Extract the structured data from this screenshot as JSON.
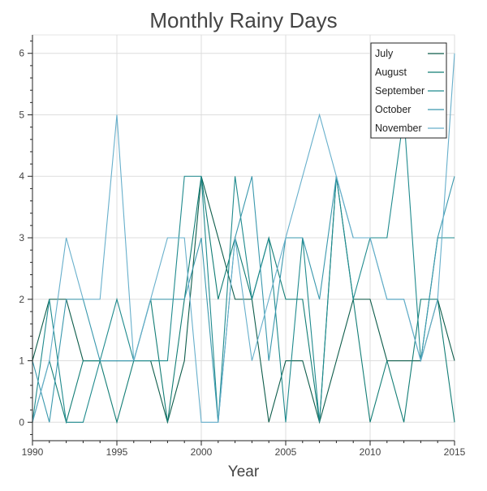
{
  "chart_data": {
    "type": "line",
    "title": "Monthly Rainy Days",
    "xlabel": "Year",
    "ylabel": "",
    "xlim": [
      1990,
      2015
    ],
    "ylim": [
      -0.3,
      6.3
    ],
    "xticks": [
      1990,
      1995,
      2000,
      2005,
      2010,
      2015
    ],
    "yticks": [
      0,
      1,
      2,
      3,
      4,
      5,
      6
    ],
    "grid": true,
    "legend_position": "top-right",
    "x": [
      1990,
      1991,
      1992,
      1993,
      1994,
      1995,
      1996,
      1997,
      1998,
      1999,
      2000,
      2001,
      2002,
      2003,
      2004,
      2005,
      2006,
      2007,
      2008,
      2009,
      2010,
      2011,
      2012,
      2013,
      2014,
      2015
    ],
    "series": [
      {
        "name": "July",
        "color": "#0d5c4a",
        "values": [
          1,
          2,
          2,
          1,
          1,
          1,
          1,
          1,
          0,
          1,
          4,
          3,
          2,
          2,
          0,
          1,
          1,
          0,
          1,
          2,
          2,
          1,
          1,
          1,
          2,
          1
        ]
      },
      {
        "name": "August",
        "color": "#127d75",
        "values": [
          0,
          1,
          0,
          1,
          1,
          0,
          1,
          2,
          0,
          2,
          4,
          2,
          3,
          2,
          3,
          2,
          2,
          0,
          4,
          2,
          0,
          1,
          0,
          2,
          2,
          0
        ]
      },
      {
        "name": "September",
        "color": "#1f8a8d",
        "values": [
          0,
          2,
          0,
          0,
          1,
          2,
          1,
          1,
          1,
          4,
          4,
          0,
          4,
          2,
          3,
          0,
          3,
          0,
          4,
          2,
          3,
          3,
          5,
          1,
          3,
          3
        ]
      },
      {
        "name": "October",
        "color": "#3a98ad",
        "values": [
          1,
          0,
          2,
          2,
          1,
          1,
          1,
          2,
          2,
          2,
          3,
          0,
          3,
          4,
          1,
          3,
          3,
          2,
          4,
          3,
          3,
          2,
          2,
          1,
          3,
          4
        ]
      },
      {
        "name": "November",
        "color": "#67afcb",
        "values": [
          0,
          1,
          3,
          2,
          2,
          5,
          1,
          2,
          3,
          3,
          0,
          0,
          3,
          1,
          2,
          3,
          4,
          5,
          4,
          3,
          3,
          2,
          2,
          1,
          2,
          6
        ]
      }
    ]
  }
}
